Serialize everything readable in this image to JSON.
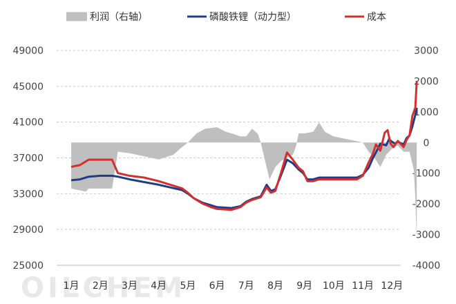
{
  "chart_data": {
    "type": "line",
    "months": [
      "1月",
      "2月",
      "3月",
      "4月",
      "5月",
      "6月",
      "7月",
      "8月",
      "9月",
      "10月",
      "11月",
      "12月"
    ],
    "left_axis": {
      "ticks": [
        25000,
        29000,
        33000,
        37000,
        41000,
        45000,
        49000
      ],
      "ylim": [
        25000,
        49000
      ]
    },
    "right_axis": {
      "ticks": [
        -4000,
        -3000,
        -2000,
        -1000,
        0,
        1000,
        2000,
        3000
      ],
      "ylim": [
        -4000,
        3000
      ]
    },
    "grid": "horizontal dotted",
    "legend_position": "top",
    "series": [
      {
        "name": "利润（右轴）",
        "kind": "area",
        "axis": "right",
        "color": "#bfbfbf",
        "x": [
          1.0,
          1.5,
          1.6,
          2.0,
          2.4,
          2.6,
          3.0,
          3.5,
          4.0,
          4.5,
          4.8,
          5.0,
          5.3,
          5.6,
          6.0,
          6.3,
          6.5,
          6.8,
          7.0,
          7.2,
          7.4,
          7.5,
          7.6,
          7.8,
          8.0,
          8.2,
          8.4,
          8.6,
          8.7,
          8.8,
          9.0,
          9.3,
          9.5,
          9.7,
          10.0,
          10.5,
          11.0,
          11.2,
          11.4,
          11.6,
          11.8,
          12.0,
          12.2,
          12.4,
          12.6,
          12.75,
          12.8,
          12.85
        ],
        "values": [
          -1500,
          -1600,
          -1500,
          -1500,
          -1500,
          -300,
          -350,
          -450,
          -550,
          -400,
          -150,
          0,
          300,
          450,
          500,
          350,
          300,
          200,
          200,
          450,
          280,
          0,
          -400,
          -1200,
          -800,
          -600,
          -500,
          -400,
          -150,
          300,
          300,
          350,
          650,
          350,
          200,
          100,
          0,
          -300,
          -500,
          -800,
          -400,
          -200,
          -100,
          -300,
          -300,
          -900,
          -1800,
          -3200
        ]
      },
      {
        "name": "磷酸铁锂（动力型）",
        "kind": "line",
        "axis": "left",
        "color": "#1f3c88",
        "x": [
          1.0,
          1.3,
          1.6,
          2.0,
          2.4,
          2.6,
          3.0,
          3.5,
          4.0,
          4.4,
          4.8,
          5.0,
          5.2,
          5.5,
          5.8,
          6.0,
          6.5,
          6.8,
          7.0,
          7.2,
          7.5,
          7.7,
          7.85,
          8.0,
          8.2,
          8.4,
          8.6,
          8.8,
          8.95,
          9.1,
          9.3,
          9.5,
          10.0,
          10.5,
          10.8,
          11.0,
          11.2,
          11.35,
          11.45,
          11.6,
          11.8,
          11.9,
          12.0,
          12.1,
          12.2,
          12.4,
          12.5,
          12.6,
          12.7,
          12.8,
          12.85
        ],
        "values": [
          34500,
          34600,
          34900,
          35000,
          35000,
          34900,
          34600,
          34300,
          34000,
          33700,
          33400,
          33000,
          32500,
          32000,
          31700,
          31500,
          31400,
          31600,
          32100,
          32400,
          32700,
          34000,
          33300,
          33500,
          35100,
          36800,
          36400,
          35700,
          35300,
          34600,
          34600,
          34800,
          34800,
          34800,
          34800,
          35100,
          35900,
          37000,
          37600,
          38600,
          38400,
          39100,
          38800,
          38600,
          38800,
          38500,
          39200,
          39500,
          40500,
          41800,
          42600
        ]
      },
      {
        "name": "成本",
        "kind": "line",
        "axis": "left",
        "color": "#d32f2f",
        "x": [
          1.0,
          1.3,
          1.5,
          1.6,
          2.0,
          2.4,
          2.6,
          3.0,
          3.5,
          4.0,
          4.4,
          4.8,
          5.0,
          5.2,
          5.5,
          5.8,
          6.0,
          6.5,
          6.8,
          7.0,
          7.2,
          7.5,
          7.7,
          7.85,
          8.0,
          8.2,
          8.4,
          8.6,
          8.8,
          8.95,
          9.1,
          9.3,
          9.5,
          10.0,
          10.5,
          10.8,
          11.0,
          11.2,
          11.35,
          11.45,
          11.6,
          11.75,
          11.85,
          11.95,
          12.05,
          12.2,
          12.4,
          12.5,
          12.6,
          12.7,
          12.8,
          12.85
        ],
        "values": [
          36000,
          36200,
          36600,
          36800,
          36800,
          36800,
          35300,
          35000,
          34800,
          34400,
          34000,
          33600,
          33100,
          32500,
          31900,
          31500,
          31300,
          31200,
          31500,
          32000,
          32300,
          32600,
          33700,
          33100,
          33300,
          35400,
          37600,
          36800,
          35900,
          35500,
          34400,
          34400,
          34600,
          34600,
          34600,
          34600,
          35000,
          36500,
          37500,
          38500,
          37800,
          39800,
          40100,
          38600,
          38200,
          38900,
          38200,
          39000,
          39500,
          41700,
          42600,
          45600
        ]
      }
    ],
    "watermark": "OILCHEM"
  }
}
